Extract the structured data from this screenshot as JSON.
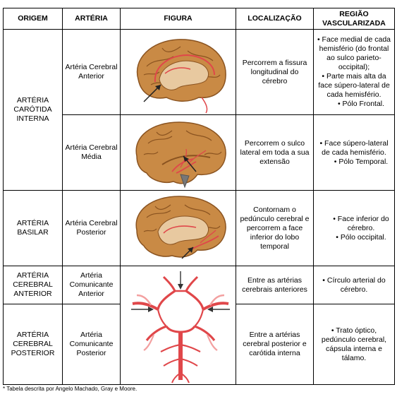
{
  "headers": {
    "origem": "ORIGEM",
    "arteria": "ARTÉRIA",
    "figura": "FIGURA",
    "localizacao": "LOCALIZAÇÃO",
    "regiao": "REGIÃO VASCULARIZADA"
  },
  "rows": [
    {
      "arteria": "Artéria Cerebral Anterior",
      "localizacao": "Percorrem a fissura longitudinal do cérebro",
      "regiao_items": [
        "• Face medial de cada hemisfério (do frontal ao sulco parieto-occipital);",
        "• Parte mais alta da face súpero-lateral de cada hemisfério.",
        "• Pólo Frontal."
      ]
    },
    {
      "arteria": "Artéria Cerebral Média",
      "localizacao": "Percorrem o sulco lateral em toda a sua extensão",
      "regiao_items": [
        "• Face súpero-lateral de cada hemisfério.",
        "• Pólo Temporal."
      ]
    },
    {
      "origem": "ARTÉRIA BASILAR",
      "arteria": "Artéria Cerebral Posterior",
      "localizacao": "Contornam o pedúnculo cerebral e percorrem a face inferior do lobo temporal",
      "regiao_items": [
        "• Face inferior do cérebro.",
        "• Pólo occipital."
      ]
    },
    {
      "origem": "ARTÉRIA CEREBRAL ANTERIOR",
      "arteria": "Artéria Comunicante Anterior",
      "localizacao": "Entre as artérias cerebrais anteriores",
      "regiao_items": [
        "• Círculo arterial do cérebro."
      ]
    },
    {
      "origem": "ARTÉRIA CEREBRAL POSTERIOR",
      "arteria": "Artéria Comunicante Posterior",
      "localizacao": "Entre a artérias cerebral posterior e carótida interna",
      "regiao_items": [
        "• Trato óptico, pedúnculo cerebral, cápsula interna e tálamo."
      ]
    }
  ],
  "origem_carotida": "ARTÉRIA CARÓTIDA INTERNA",
  "footnote": "* Tabela descrita por Angelo Machado, Gray e Moore.",
  "colors": {
    "brain": "#c98a45",
    "brain_dark": "#9a5d26",
    "artery": "#e0474a",
    "artery_light": "#f3a0a0"
  }
}
